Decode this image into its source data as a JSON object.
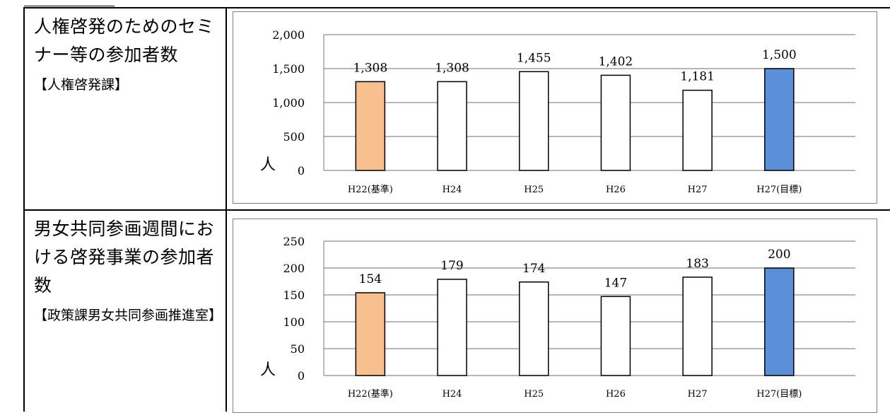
{
  "rows": [
    {
      "label_title": "人権啓発のためのセミナー等の参加者数",
      "label_dept": "【人権啓発課】"
    },
    {
      "label_title": "男女共同参画週間における啓発事業の参加者数",
      "label_dept": "【政策課男女共同参画推進室】"
    }
  ],
  "chart_data": [
    {
      "type": "bar",
      "categories": [
        "H22(基準)",
        "H24",
        "H25",
        "H26",
        "H27",
        "H27(目標)"
      ],
      "values": [
        1308,
        1308,
        1455,
        1402,
        1181,
        1500
      ],
      "data_labels": [
        "1,308",
        "1,308",
        "1,455",
        "1,402",
        "1,181",
        "1,500"
      ],
      "ylim": [
        0,
        2000
      ],
      "yticks": [
        0,
        500,
        1000,
        1500,
        2000
      ],
      "ytick_labels": [
        "0",
        "500",
        "1,000",
        "1,500",
        "2,000"
      ],
      "ylabel": "人",
      "grid": true,
      "bar_colors": [
        "#f9c08f",
        "#ffffff",
        "#ffffff",
        "#ffffff",
        "#ffffff",
        "#5b8fd8"
      ]
    },
    {
      "type": "bar",
      "categories": [
        "H22(基準)",
        "H24",
        "H25",
        "H26",
        "H27",
        "H27(目標)"
      ],
      "values": [
        154,
        179,
        174,
        147,
        183,
        200
      ],
      "data_labels": [
        "154",
        "179",
        "174",
        "147",
        "183",
        "200"
      ],
      "ylim": [
        0,
        250
      ],
      "yticks": [
        0,
        50,
        100,
        150,
        200,
        250
      ],
      "ytick_labels": [
        "0",
        "50",
        "100",
        "150",
        "200",
        "250"
      ],
      "ylabel": "人",
      "grid": true,
      "bar_colors": [
        "#f9c08f",
        "#ffffff",
        "#ffffff",
        "#ffffff",
        "#ffffff",
        "#5b8fd8"
      ]
    }
  ]
}
